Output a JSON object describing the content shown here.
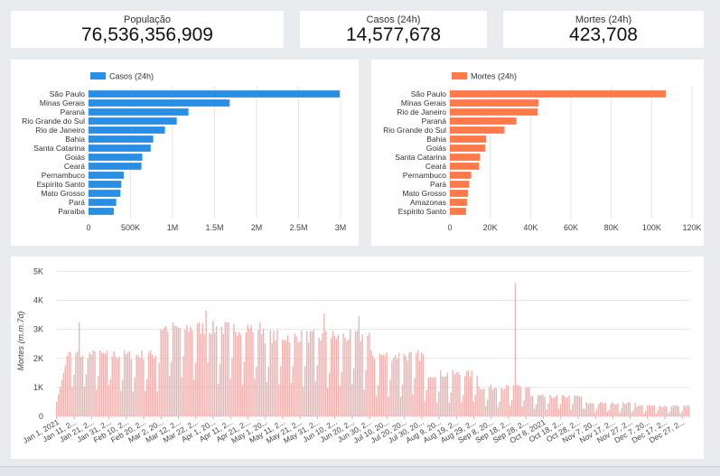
{
  "kpis": [
    {
      "label": "População",
      "value": "76,536,356,909"
    },
    {
      "label": "Casos (24h)",
      "value": "14,577,678"
    },
    {
      "label": "Mortes (24h)",
      "value": "423,708"
    }
  ],
  "colors": {
    "cases": "#2a8ee3",
    "deaths": "#ff7a4a",
    "daily": "#eeb2b1",
    "grid": "#e6e6e6"
  },
  "chart_data": [
    {
      "type": "bar",
      "orientation": "horizontal",
      "legend": "Casos (24h)",
      "legend_position": "top-left",
      "categories": [
        "São Paulo",
        "Minas Gerais",
        "Paraná",
        "Rio Grande do Sul",
        "Rio de Janeiro",
        "Bahia",
        "Santa Catarina",
        "Goiás",
        "Ceará",
        "Pernambuco",
        "Espírito Santo",
        "Mato Grosso",
        "Pará",
        "Paraíba"
      ],
      "values": [
        2990000,
        1680000,
        1190000,
        1050000,
        910000,
        770000,
        740000,
        640000,
        630000,
        420000,
        390000,
        380000,
        330000,
        300000
      ],
      "xlim": [
        0,
        3000000
      ],
      "ticks": [
        0,
        500000,
        1000000,
        1500000,
        2000000,
        2500000,
        3000000
      ],
      "tick_labels": [
        "0",
        "500K",
        "1M",
        "1.5M",
        "2M",
        "2.5M",
        "3M"
      ],
      "grid": true
    },
    {
      "type": "bar",
      "orientation": "horizontal",
      "legend": "Mortes (24h)",
      "legend_position": "top-left",
      "categories": [
        "São Paulo",
        "Minas Gerais",
        "Rio de Janeiro",
        "Paraná",
        "Rio Grande do Sul",
        "Bahia",
        "Goiás",
        "Santa Catarina",
        "Ceará",
        "Pernambuco",
        "Pará",
        "Mato Grosso",
        "Amazonas",
        "Espírito Santo"
      ],
      "values": [
        107000,
        44000,
        43500,
        33000,
        27000,
        18000,
        17500,
        15000,
        14500,
        10500,
        9500,
        9000,
        8500,
        8000
      ],
      "xlim": [
        0,
        120000
      ],
      "ticks": [
        0,
        20000,
        40000,
        60000,
        80000,
        100000,
        120000
      ],
      "tick_labels": [
        "0",
        "20K",
        "40K",
        "60K",
        "80K",
        "100K",
        "120K"
      ],
      "grid": true
    },
    {
      "type": "bar",
      "ylabel": "Mortes (m.m.7d)",
      "ylim": [
        0,
        5200
      ],
      "yticks": [
        0,
        1000,
        2000,
        3000,
        4000,
        5000
      ],
      "ytick_labels": [
        "0",
        "1K",
        "2K",
        "3K",
        "4K",
        "5K"
      ],
      "x_start": "2021-01-01",
      "x_end": "2021-12-31",
      "xtick_labels": [
        "Jan 1, 2021",
        "Jan 11, 2...",
        "Jan 21, 2...",
        "Jan 31, 2...",
        "Feb 10, 2...",
        "Feb 20, 2...",
        "Mar 2, 20...",
        "Mar 12, 2...",
        "Mar 22, 2...",
        "Apr 1, 20...",
        "Apr 11, 2...",
        "Apr 21, 2...",
        "May 1, 20...",
        "May 11, 2...",
        "May 21, 2...",
        "May 31, 2...",
        "Jun 10, 2...",
        "Jun 20, 2...",
        "Jun 30, 2...",
        "Jul 10, 20...",
        "Jul 20, 20...",
        "Jul 30, 20...",
        "Aug 9, 20...",
        "Aug 19, 2...",
        "Aug 29, 2...",
        "Sep 8, 20...",
        "Sep 18, 2...",
        "Sep 28, 2...",
        "Oct 8, 2021",
        "Oct 18, 2...",
        "Oct 28, 2...",
        "Nov 7, 20...",
        "Nov 17, 2...",
        "Nov 27, 2...",
        "Dec 7, 20...",
        "Dec 17, 2...",
        "Dec 27, 2..."
      ],
      "monthly_levels": [
        {
          "month": "Jan",
          "low": 1000,
          "high": 2300
        },
        {
          "month": "Feb",
          "low": 900,
          "high": 2300
        },
        {
          "month": "Mar",
          "low": 1300,
          "high": 3300
        },
        {
          "month": "Apr",
          "low": 1200,
          "high": 3300
        },
        {
          "month": "May",
          "low": 1100,
          "high": 3000
        },
        {
          "month": "Jun",
          "low": 1000,
          "high": 3000
        },
        {
          "month": "Jul",
          "low": 700,
          "high": 2300
        },
        {
          "month": "Aug",
          "low": 500,
          "high": 1600
        },
        {
          "month": "Sep",
          "low": 350,
          "high": 1100
        },
        {
          "month": "Oct",
          "low": 250,
          "high": 750
        },
        {
          "month": "Nov",
          "low": 150,
          "high": 500
        },
        {
          "month": "Dec",
          "low": 100,
          "high": 400
        }
      ],
      "peaks": [
        {
          "date": "2021-01-14",
          "value": 3250
        },
        {
          "date": "2021-03-28",
          "value": 3650
        },
        {
          "date": "2021-06-04",
          "value": 3550
        },
        {
          "date": "2021-06-24",
          "value": 3450
        },
        {
          "date": "2021-09-22",
          "value": 4600
        }
      ],
      "grid": true
    }
  ]
}
